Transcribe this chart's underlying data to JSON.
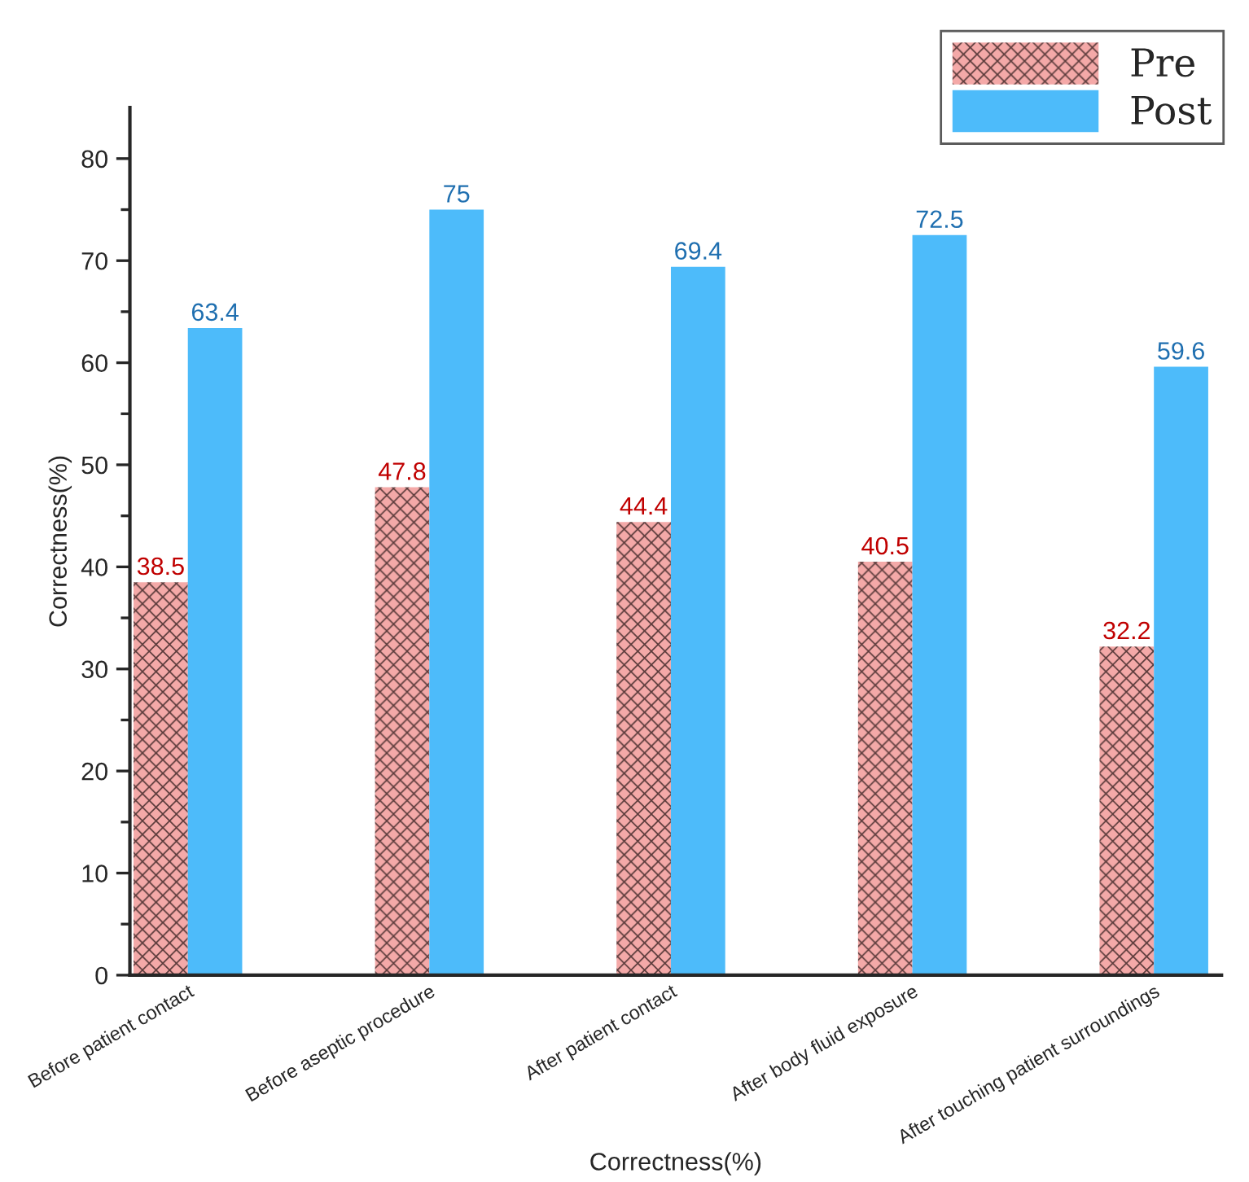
{
  "chart_data": {
    "type": "bar",
    "categories": [
      "Before patient contact",
      "Before aseptic procedure",
      "After patient contact",
      "After body fluid exposure",
      "After touching patient surroundings"
    ],
    "series": [
      {
        "name": "Pre",
        "color": "#f4a9a8",
        "values": [
          38.5,
          47.8,
          44.4,
          40.5,
          32.2
        ]
      },
      {
        "name": "Post",
        "color": "#4dbbfa",
        "values": [
          63.4,
          75,
          69.4,
          72.5,
          59.6
        ]
      }
    ],
    "xlabel": "Correctness(%)",
    "ylabel": "Correctness(%)",
    "ylim": [
      0,
      85
    ],
    "yticks": [
      0,
      10,
      20,
      30,
      40,
      50,
      60,
      70,
      80
    ],
    "data_labels": true,
    "legend": "top right",
    "grid": false
  }
}
